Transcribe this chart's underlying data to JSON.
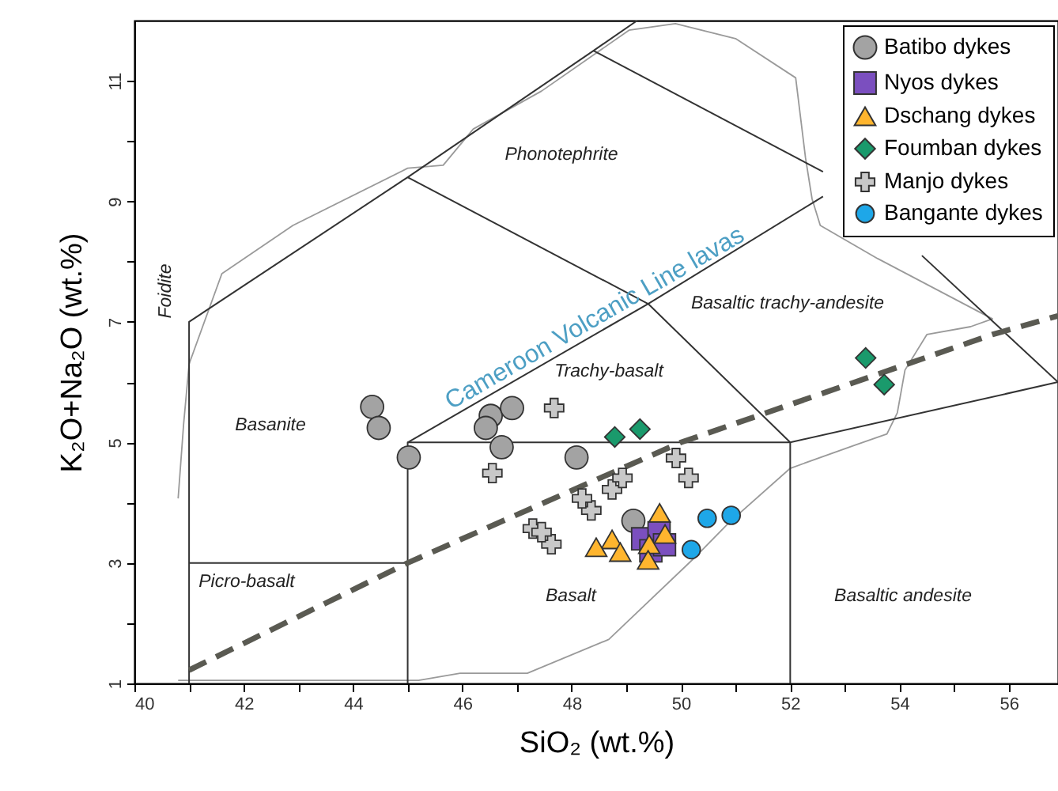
{
  "chart_data": {
    "type": "scatter",
    "xlabel": "SiO₂ (wt.%)",
    "ylabel": "K₂O+Na₂O (wt.%)",
    "xlim": [
      40,
      56.9
    ],
    "ylim": [
      1,
      12
    ],
    "xticks": [
      40,
      {
        "value": 41,
        "label": null
      },
      42,
      {
        "value": 43,
        "label": null
      },
      44,
      {
        "value": 45,
        "label": null
      },
      46,
      {
        "value": 47,
        "label": null
      },
      48,
      {
        "value": 49,
        "label": null
      },
      50,
      {
        "value": 51,
        "label": null
      },
      52,
      {
        "value": 53,
        "label": null
      },
      54,
      {
        "value": 55,
        "label": null
      },
      56
    ],
    "yticks": [
      1,
      {
        "value": 2,
        "label": null
      },
      3,
      {
        "value": 4,
        "label": null
      },
      5,
      {
        "value": 6,
        "label": null
      },
      7,
      {
        "value": 8,
        "label": null
      },
      9,
      {
        "value": 10,
        "label": null
      },
      11
    ],
    "grid": false,
    "legend": "top right",
    "annotations": [
      "Cameroon Volcanic Line lavas",
      "Foidite",
      "Phonotephrite",
      "Basanite",
      "Trachy-basalt",
      "Basaltic trachy-andesite",
      "Picro-basalt",
      "Basalt",
      "Basaltic andesite"
    ],
    "series": [
      {
        "type": "line",
        "color": "#9a9a9a",
        "line_style": "solid",
        "x": [
          40.8,
          45.2,
          45.96,
          47.19,
          48.68,
          50.3,
          50.87,
          52.0,
          53.2,
          53.77,
          53.96,
          54.1,
          54.5,
          55.3,
          55.7,
          53.6,
          52.55,
          52.4,
          52.28,
          52.1,
          51.0,
          49.9,
          49.05,
          47.45,
          46.2,
          45.65,
          45.0,
          42.9,
          41.6,
          41.0,
          40.9,
          40.8
        ],
        "values": [
          1.05,
          1.05,
          1.17,
          1.17,
          1.73,
          3.13,
          3.66,
          4.57,
          4.96,
          5.14,
          5.49,
          6.2,
          6.79,
          6.92,
          7.05,
          8.05,
          8.6,
          9.04,
          9.72,
          11.05,
          11.7,
          11.95,
          11.84,
          10.83,
          10.2,
          9.6,
          9.55,
          8.6,
          7.8,
          6.3,
          5.3,
          4.07
        ]
      },
      {
        "type": "line",
        "color": "#333333",
        "line_style": "solid",
        "x": [
          41,
          41,
          45,
          48.4,
          49.2
        ],
        "values": [
          1,
          7,
          9.4,
          11.5,
          12
        ]
      },
      {
        "type": "line",
        "color": "#333333",
        "line_style": "solid",
        "x": [
          41,
          45
        ],
        "values": [
          3,
          3
        ]
      },
      {
        "type": "line",
        "color": "#333333",
        "line_style": "solid",
        "x": [
          45,
          45,
          52,
          52
        ],
        "values": [
          1,
          5,
          5,
          1
        ]
      },
      {
        "type": "line",
        "color": "#333333",
        "line_style": "solid",
        "x": [
          45,
          49.4,
          52
        ],
        "values": [
          9.4,
          7.3,
          5
        ]
      },
      {
        "type": "line",
        "color": "#333333",
        "line_style": "solid",
        "x": [
          45,
          49.4,
          52.6
        ],
        "values": [
          5,
          7.3,
          9.08
        ]
      },
      {
        "type": "line",
        "color": "#333333",
        "line_style": "solid",
        "x": [
          48.4,
          52.6
        ],
        "values": [
          11.5,
          9.49
        ]
      },
      {
        "type": "line",
        "color": "#333333",
        "line_style": "solid",
        "x": [
          54.41,
          56.9
        ],
        "values": [
          8.1,
          6.0
        ]
      },
      {
        "type": "line",
        "color": "#333333",
        "line_style": "solid",
        "x": [
          52,
          56.9
        ],
        "values": [
          5,
          6.0
        ]
      },
      {
        "type": "line",
        "color": "#5a5a52",
        "line_style": "dashed",
        "x": [
          41,
          45,
          50,
          55.7,
          56.9
        ],
        "values": [
          1.22,
          3,
          5,
          6.79,
          7.1
        ]
      },
      {
        "name": "Batibo dykes",
        "marker": "circle",
        "color": "#a3a3a3",
        "x": [
          44.35,
          44.47,
          45.02,
          46.52,
          46.43,
          46.91,
          46.72,
          48.09,
          49.13
        ],
        "values": [
          5.59,
          5.24,
          4.75,
          5.44,
          5.24,
          5.57,
          4.92,
          4.75,
          3.7
        ]
      },
      {
        "name": "Nyos dykes",
        "marker": "square",
        "color": "#7b4fbf",
        "x": [
          49.3,
          49.6,
          49.45,
          49.7
        ],
        "values": [
          3.4,
          3.5,
          3.2,
          3.3
        ]
      },
      {
        "name": "Dschang dykes",
        "marker": "triangle",
        "color": "#ffb52e",
        "x": [
          49.61,
          49.71,
          48.74,
          48.45,
          48.89,
          49.42,
          49.4
        ],
        "values": [
          3.83,
          3.48,
          3.39,
          3.26,
          3.18,
          3.31,
          3.05
        ]
      },
      {
        "name": "Foumban dykes",
        "marker": "diamond",
        "color": "#1a9a6c",
        "x": [
          48.79,
          49.25,
          53.38,
          53.72
        ],
        "values": [
          5.09,
          5.22,
          6.4,
          5.96
        ]
      },
      {
        "name": "Manjo dykes",
        "marker": "cross",
        "color": "#c8c8c8",
        "x": [
          47.68,
          46.55,
          50.14,
          49.91,
          47.29,
          47.63,
          48.36,
          48.74,
          48.93,
          48.19,
          47.45
        ],
        "values": [
          5.57,
          4.49,
          4.41,
          4.74,
          3.57,
          3.31,
          3.87,
          4.22,
          4.41,
          4.07,
          3.51
        ]
      },
      {
        "name": "Bangante dykes",
        "marker": "circle",
        "color": "#1ea7e8",
        "x": [
          50.48,
          50.92,
          50.19
        ],
        "values": [
          3.74,
          3.79,
          3.22
        ]
      }
    ]
  }
}
